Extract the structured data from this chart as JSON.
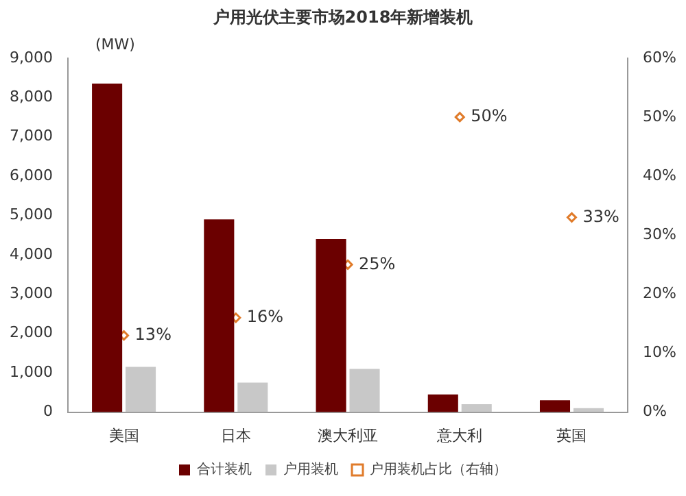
{
  "chart_data": {
    "type": "bar",
    "title": "户用光伏主要市场2018年新增装机",
    "ylabel": "(MW)",
    "categories": [
      "美国",
      "日本",
      "澳大利亚",
      "意大利",
      "英国"
    ],
    "series": [
      {
        "name": "合计装机",
        "color": "#6b0000",
        "values": [
          8350,
          4900,
          4400,
          450,
          300
        ]
      },
      {
        "name": "户用装机",
        "color": "#c8c8c8",
        "values": [
          1150,
          750,
          1100,
          200,
          100
        ]
      },
      {
        "name": "户用装机占比（右轴）",
        "type": "scatter",
        "axis": "y2",
        "color": "#e07b2a",
        "marker": "diamond",
        "values": [
          13,
          16,
          25,
          50,
          33
        ],
        "value_labels": [
          "13%",
          "16%",
          "25%",
          "50%",
          "33%"
        ]
      }
    ],
    "ylim": [
      0,
      9000
    ],
    "yticks": [
      {
        "value": 0,
        "label": "0"
      },
      {
        "value": 1000,
        "label": "1,000"
      },
      {
        "value": 2000,
        "label": "2,000"
      },
      {
        "value": 3000,
        "label": "3,000"
      },
      {
        "value": 4000,
        "label": "4,000"
      },
      {
        "value": 5000,
        "label": "5,000"
      },
      {
        "value": 6000,
        "label": "6,000"
      },
      {
        "value": 7000,
        "label": "7,000"
      },
      {
        "value": 8000,
        "label": "8,000"
      },
      {
        "value": 9000,
        "label": "9,000"
      }
    ],
    "y2lim": [
      0,
      60
    ],
    "y2ticks": [
      {
        "value": 0,
        "label": "0%"
      },
      {
        "value": 10,
        "label": "10%"
      },
      {
        "value": 20,
        "label": "20%"
      },
      {
        "value": 30,
        "label": "30%"
      },
      {
        "value": 40,
        "label": "40%"
      },
      {
        "value": 50,
        "label": "50%"
      },
      {
        "value": 60,
        "label": "60%"
      }
    ],
    "grid": false,
    "legend": "bottom"
  }
}
